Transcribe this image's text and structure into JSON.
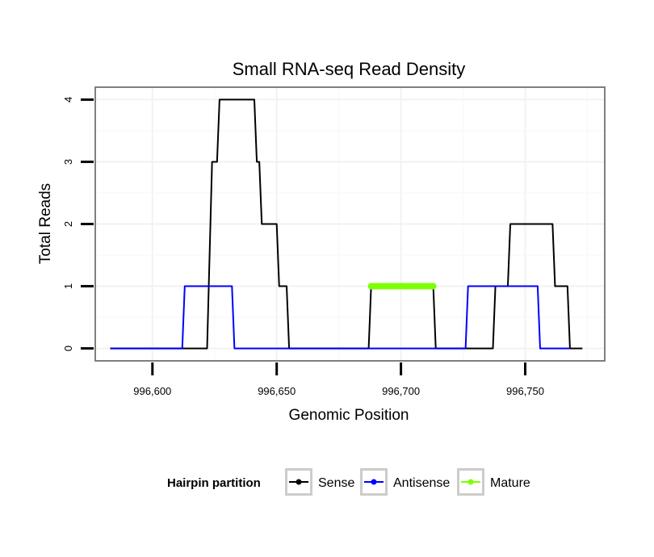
{
  "chart_data": {
    "type": "line",
    "title": "Small RNA-seq Read Density",
    "xlabel": "Genomic Position",
    "ylabel": "Total Reads",
    "xlim": [
      996577,
      996782
    ],
    "ylim": [
      -0.2,
      4.2
    ],
    "x_ticks": [
      996600,
      996650,
      996700,
      996750
    ],
    "x_tick_labels": [
      "996,600",
      "996,650",
      "996,700",
      "996,750"
    ],
    "y_ticks": [
      0,
      1,
      2,
      3,
      4
    ],
    "y_tick_labels": [
      "0",
      "1",
      "2",
      "3",
      "4"
    ],
    "grid": true,
    "legend": {
      "title": "Hairpin partition",
      "position": "bottom"
    },
    "series": [
      {
        "name": "Sense",
        "color": "#000000",
        "points": [
          [
            996583,
            0
          ],
          [
            996622,
            0
          ],
          [
            996624,
            3
          ],
          [
            996626,
            3
          ],
          [
            996627,
            4
          ],
          [
            996641,
            4
          ],
          [
            996642,
            3
          ],
          [
            996643,
            3
          ],
          [
            996644,
            2
          ],
          [
            996650,
            2
          ],
          [
            996651,
            1
          ],
          [
            996654,
            1
          ],
          [
            996655,
            0
          ],
          [
            996687,
            0
          ],
          [
            996688,
            1
          ],
          [
            996713,
            1
          ],
          [
            996714,
            0
          ],
          [
            996737,
            0
          ],
          [
            996738,
            1
          ],
          [
            996743,
            1
          ],
          [
            996744,
            2
          ],
          [
            996761,
            2
          ],
          [
            996762,
            1
          ],
          [
            996767,
            1
          ],
          [
            996768,
            0
          ],
          [
            996773,
            0
          ]
        ]
      },
      {
        "name": "Antisense",
        "color": "#0000ff",
        "points": [
          [
            996583,
            0
          ],
          [
            996612,
            0
          ],
          [
            996613,
            1
          ],
          [
            996632,
            1
          ],
          [
            996633,
            0
          ],
          [
            996714,
            0
          ],
          [
            996726,
            0
          ],
          [
            996727,
            1
          ],
          [
            996755,
            1
          ],
          [
            996756,
            0
          ],
          [
            996768,
            0
          ]
        ]
      },
      {
        "name": "Mature",
        "color": "#7cff00",
        "points": [
          [
            996688,
            1
          ],
          [
            996689,
            1
          ],
          [
            996690,
            1
          ],
          [
            996691,
            1
          ],
          [
            996692,
            1
          ],
          [
            996693,
            1
          ],
          [
            996694,
            1
          ],
          [
            996695,
            1
          ],
          [
            996696,
            1
          ],
          [
            996697,
            1
          ],
          [
            996698,
            1
          ],
          [
            996699,
            1
          ],
          [
            996700,
            1
          ],
          [
            996701,
            1
          ],
          [
            996702,
            1
          ],
          [
            996703,
            1
          ],
          [
            996704,
            1
          ],
          [
            996705,
            1
          ],
          [
            996706,
            1
          ],
          [
            996707,
            1
          ],
          [
            996708,
            1
          ],
          [
            996709,
            1
          ],
          [
            996710,
            1
          ],
          [
            996711,
            1
          ],
          [
            996712,
            1
          ],
          [
            996713,
            1
          ]
        ]
      }
    ]
  }
}
